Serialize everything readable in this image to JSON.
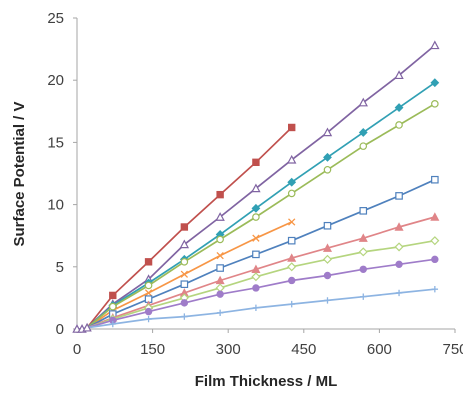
{
  "chart_data": {
    "type": "line",
    "title": "",
    "xlabel": "Film Thickness / ML",
    "ylabel": "Surface Potential / V",
    "xlim": [
      0,
      750
    ],
    "ylim": [
      0,
      25
    ],
    "xticks": [
      0,
      150,
      300,
      450,
      600,
      750
    ],
    "yticks": [
      0,
      5,
      10,
      15,
      20,
      25
    ],
    "grid": false,
    "legend": "none",
    "origin_points": [
      {
        "x": 0,
        "y": 0
      },
      {
        "x": 10,
        "y": 0
      },
      {
        "x": 20,
        "y": 0.1
      }
    ],
    "series": [
      {
        "color": "#C0504D",
        "marker": "square-filled",
        "x": [
          71,
          142,
          213,
          284,
          355,
          426
        ],
        "y": [
          2.7,
          5.4,
          8.2,
          10.8,
          13.4,
          16.2
        ]
      },
      {
        "color": "#8064A2",
        "marker": "triangle-open",
        "x": [
          71,
          142,
          213,
          284,
          355,
          426,
          497,
          568,
          639,
          710
        ],
        "y": [
          2.0,
          4.0,
          6.8,
          9.0,
          11.3,
          13.6,
          15.8,
          18.2,
          20.4,
          22.8
        ]
      },
      {
        "color": "#F79646",
        "marker": "x",
        "x": [
          71,
          142,
          213,
          284,
          355,
          426
        ],
        "y": [
          1.5,
          2.9,
          4.4,
          5.9,
          7.3,
          8.6
        ]
      },
      {
        "color": "#31A0B4",
        "marker": "diamond-filled",
        "x": [
          71,
          142,
          213,
          284,
          355,
          426,
          497,
          568,
          639,
          710
        ],
        "y": [
          1.9,
          3.7,
          5.6,
          7.6,
          9.7,
          11.8,
          13.8,
          15.8,
          17.8,
          19.8
        ]
      },
      {
        "color": "#9BBB59",
        "marker": "circle-open",
        "x": [
          71,
          142,
          213,
          284,
          355,
          426,
          497,
          568,
          639,
          710
        ],
        "y": [
          1.8,
          3.5,
          5.4,
          7.2,
          9.0,
          10.9,
          12.8,
          14.7,
          16.4,
          18.1
        ]
      },
      {
        "color": "#4F81BD",
        "marker": "square-open",
        "x": [
          71,
          142,
          213,
          284,
          355,
          426,
          497,
          568,
          639,
          710
        ],
        "y": [
          1.2,
          2.4,
          3.6,
          4.9,
          6.0,
          7.1,
          8.3,
          9.5,
          10.7,
          12.0
        ]
      },
      {
        "color": "#E08588",
        "marker": "triangle-filled",
        "x": [
          71,
          142,
          213,
          284,
          355,
          426,
          497,
          568,
          639,
          710
        ],
        "y": [
          0.9,
          1.9,
          2.9,
          3.9,
          4.8,
          5.7,
          6.5,
          7.3,
          8.2,
          9.0
        ]
      },
      {
        "color": "#B5D57F",
        "marker": "diamond-open",
        "x": [
          71,
          142,
          213,
          284,
          355,
          426,
          497,
          568,
          639,
          710
        ],
        "y": [
          0.8,
          1.7,
          2.5,
          3.3,
          4.2,
          5.0,
          5.6,
          6.2,
          6.6,
          7.1
        ]
      },
      {
        "color": "#9F7CC9",
        "marker": "circle-filled",
        "x": [
          71,
          142,
          213,
          284,
          355,
          426,
          497,
          568,
          639,
          710
        ],
        "y": [
          0.7,
          1.4,
          2.1,
          2.8,
          3.3,
          3.9,
          4.3,
          4.8,
          5.2,
          5.6
        ]
      },
      {
        "color": "#8DB4E2",
        "marker": "plus",
        "x": [
          71,
          142,
          213,
          284,
          355,
          426,
          497,
          568,
          639,
          710
        ],
        "y": [
          0.4,
          0.8,
          1.0,
          1.3,
          1.7,
          2.0,
          2.3,
          2.6,
          2.9,
          3.2
        ]
      }
    ]
  }
}
